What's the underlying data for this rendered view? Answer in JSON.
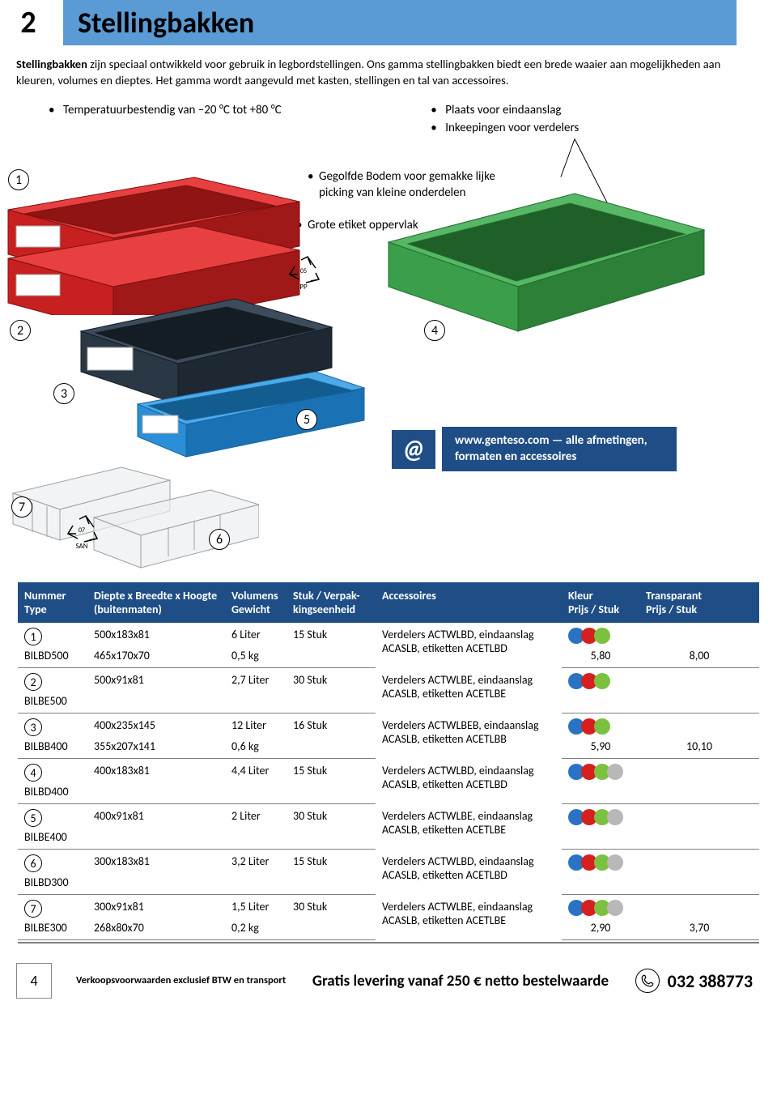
{
  "header": {
    "number": "2",
    "title": "Stellingbakken"
  },
  "intro": {
    "bold": "Stellingbakken",
    "text": " zijn speciaal ontwikkeld voor gebruik in legbordstellingen. Ons gamma stellingbakken biedt een brede waaier aan mogelijkheden aan kleuren, volumes en dieptes. Het gamma wordt aangevuld met kasten, stellingen en tal van accessoires."
  },
  "top_bullets": {
    "left": "Temperatuurbestendig van –20 °C tot +80 °C",
    "right1": "Plaats voor eindaanslag",
    "right2": "Inkeepingen voor verdelers"
  },
  "annotations": {
    "a1": "Gegolfde Bodem voor gemakke lijke picking van kleine onderdelen",
    "a2": "Grote etiket oppervlak"
  },
  "info_box": {
    "at": "@",
    "text": "www.genteso.com — alle afmetingen, formaten en accessoires"
  },
  "recycle": {
    "code1": "05",
    "mat1": "PP",
    "code2": "07",
    "mat2": "SAN"
  },
  "bin_colors": {
    "red": "#c82020",
    "navy": "#2a3744",
    "blue": "#2a8fd6",
    "green": "#3a9e4a",
    "clear": "#d8dde0"
  },
  "table": {
    "headers": {
      "num": "Nummer",
      "type": "Type",
      "dim": "Diepte x Breedte x Hoogte",
      "dim2": "(buitenmaten)",
      "vol": "Volumens",
      "gew": "Gewicht",
      "pack": "Stuk / Verpak-",
      "pack2": "kingseenheid",
      "acc": "Accessoires",
      "kleur": "Kleur",
      "prijs": "Prijs / Stuk",
      "trans": "Transparant",
      "prijs2": "Prijs / Stuk"
    },
    "dot_colors": {
      "blue": "#2a73c4",
      "red": "#d62020",
      "green": "#7cc040",
      "grey": "#b8b8b8"
    },
    "rows": [
      {
        "n": "①",
        "type": "BILBD500",
        "dim1": "500x183x81",
        "dim2": "465x170x70",
        "vol": "6 Liter",
        "gew": "0,5 kg",
        "pack": "15 Stuk",
        "acc": "Verdelers ACTWLBD, eindaanslag ACASLB, etiketten ACETLBD",
        "p1": "5,80",
        "p2": "8,00",
        "dots": 3
      },
      {
        "n": "②",
        "type": "BILBE500",
        "dim1": "500x91x81",
        "dim2": "",
        "vol": "2,7 Liter",
        "gew": "",
        "pack": "30 Stuk",
        "acc": "Verdelers ACTWLBE, eindaanslag ACASLB, etiketten ACETLBE",
        "p1": "",
        "p2": "",
        "dots": 3
      },
      {
        "n": "③",
        "type": "BILBB400",
        "dim1": "400x235x145",
        "dim2": "355x207x141",
        "vol": "12 Liter",
        "gew": "0,6 kg",
        "pack": "16 Stuk",
        "acc": "Verdelers ACTWLBEB, eindaanslag ACASLB, etiketten ACETLBB",
        "p1": "5,90",
        "p2": "10,10",
        "dots": 3
      },
      {
        "n": "④",
        "type": "BILBD400",
        "dim1": "400x183x81",
        "dim2": "",
        "vol": "4,4 Liter",
        "gew": "",
        "pack": "15 Stuk",
        "acc": "Verdelers ACTWLBD, eindaanslag ACASLB, etiketten ACETLBD",
        "p1": "",
        "p2": "",
        "dots": 4
      },
      {
        "n": "⑤",
        "type": "BILBE400",
        "dim1": "400x91x81",
        "dim2": "",
        "vol": "2 Liter",
        "gew": "",
        "pack": "30 Stuk",
        "acc": "Verdelers ACTWLBE, eindaanslag ACASLB, etiketten ACETLBE",
        "p1": "",
        "p2": "",
        "dots": 4
      },
      {
        "n": "⑥",
        "type": "BILBD300",
        "dim1": "300x183x81",
        "dim2": "",
        "vol": "3,2 Liter",
        "gew": "",
        "pack": "15 Stuk",
        "acc": "Verdelers ACTWLBD, eindaanslag ACASLB, etiketten ACETLBD",
        "p1": "",
        "p2": "",
        "dots": 4
      },
      {
        "n": "⑦",
        "type": "BILBE300",
        "dim1": "300x91x81",
        "dim2": "268x80x70",
        "vol": "1,5 Liter",
        "gew": "0,2 kg",
        "pack": "30 Stuk",
        "acc": "Verdelers ACTWLBE, eindaanslag ACASLB, etiketten ACETLBE",
        "p1": "2,90",
        "p2": "3,70",
        "dots": 4
      }
    ]
  },
  "footer": {
    "page": "4",
    "terms": "Verkoopsvoorwaarden exclusief BTW en transport",
    "ship": "Gratis levering vanaf 250 € netto bestelwaarde",
    "phone": "032 388773"
  }
}
